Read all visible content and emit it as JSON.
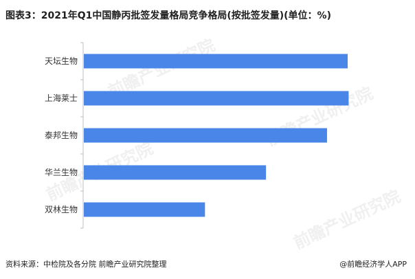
{
  "title": "图表3：2021年Q1中国静丙批签发量格局竞争格局(按批签发量)(单位：%)",
  "source": "资料来源：中检院及各分院 前瞻产业研究院整理",
  "brand": "@前瞻经济学人APP",
  "watermark": "前瞻产业研究院",
  "colors": {
    "bar": "#4a86e8",
    "axis": "#bfbfbf"
  },
  "chart_data": {
    "type": "bar",
    "orientation": "horizontal",
    "categories": [
      "天坛生物",
      "上海莱士",
      "泰邦生物",
      "华兰生物",
      "双林生物"
    ],
    "values": [
      28.1,
      28.2,
      25.9,
      19.4,
      12.9
    ],
    "xlim": [
      0,
      30
    ],
    "title": "图表3：2021年Q1中国静丙批签发量格局竞争格局(按批签发量)(单位：%)",
    "xlabel": "",
    "ylabel": "",
    "grid": false,
    "legend": "none"
  }
}
